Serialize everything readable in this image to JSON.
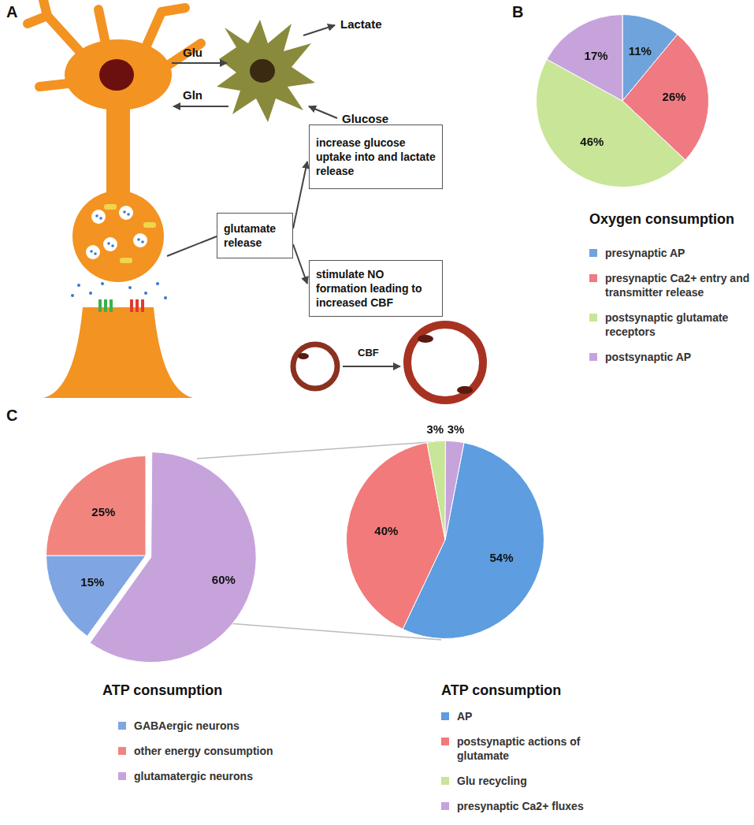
{
  "diagram": {
    "panel": "A",
    "exchange": {
      "to_astrocyte": "Glu",
      "to_neuron": "Gln",
      "astrocyte_out": "Lactate",
      "astrocyte_in": "Glucose"
    },
    "boxes": {
      "release": "glutamate release",
      "metabolic": "increase glucose uptake into and lactate release",
      "vascular": "stimulate NO formation leading to increased CBF"
    },
    "vessel": "CBF"
  },
  "chart_data": [
    {
      "panel": "B",
      "type": "pie",
      "title": "Oxygen consumption",
      "categories": [
        "presynaptic AP",
        "presynaptic Ca2+ entry and transmitter release",
        "postsynaptic glutamate receptors",
        "postsynaptic AP"
      ],
      "values": [
        11,
        26,
        46,
        17
      ],
      "value_labels": [
        "11%",
        "26%",
        "46%",
        "17%"
      ],
      "colors": [
        "#6fa3dc",
        "#f07a82",
        "#c9e597",
        "#c7a3dc"
      ],
      "data_labels": true,
      "legend": "bottom"
    },
    {
      "panel": "C",
      "type": "pie",
      "title": "ATP consumption",
      "categories": [
        "GABAergic neurons",
        "other energy consumption",
        "glutamatergic neurons"
      ],
      "values": [
        15,
        25,
        60
      ],
      "value_labels": [
        "15%",
        "25%",
        "60%"
      ],
      "colors": [
        "#7fa6e2",
        "#f2847e",
        "#c7a3dc"
      ],
      "data_labels": true,
      "legend": "bottom"
    },
    {
      "type": "pie",
      "title": "ATP consumption",
      "categories": [
        "AP",
        "postsynaptic actions of glutamate",
        "Glu recycling",
        "presynaptic Ca2+ fluxes"
      ],
      "values": [
        54,
        40,
        3,
        3
      ],
      "value_labels": [
        "54%",
        "40%",
        "3%",
        "3%"
      ],
      "colors": [
        "#5d9de0",
        "#f27a7a",
        "#c9e597",
        "#c7a3dc"
      ],
      "data_labels": true,
      "legend": "bottom"
    }
  ]
}
